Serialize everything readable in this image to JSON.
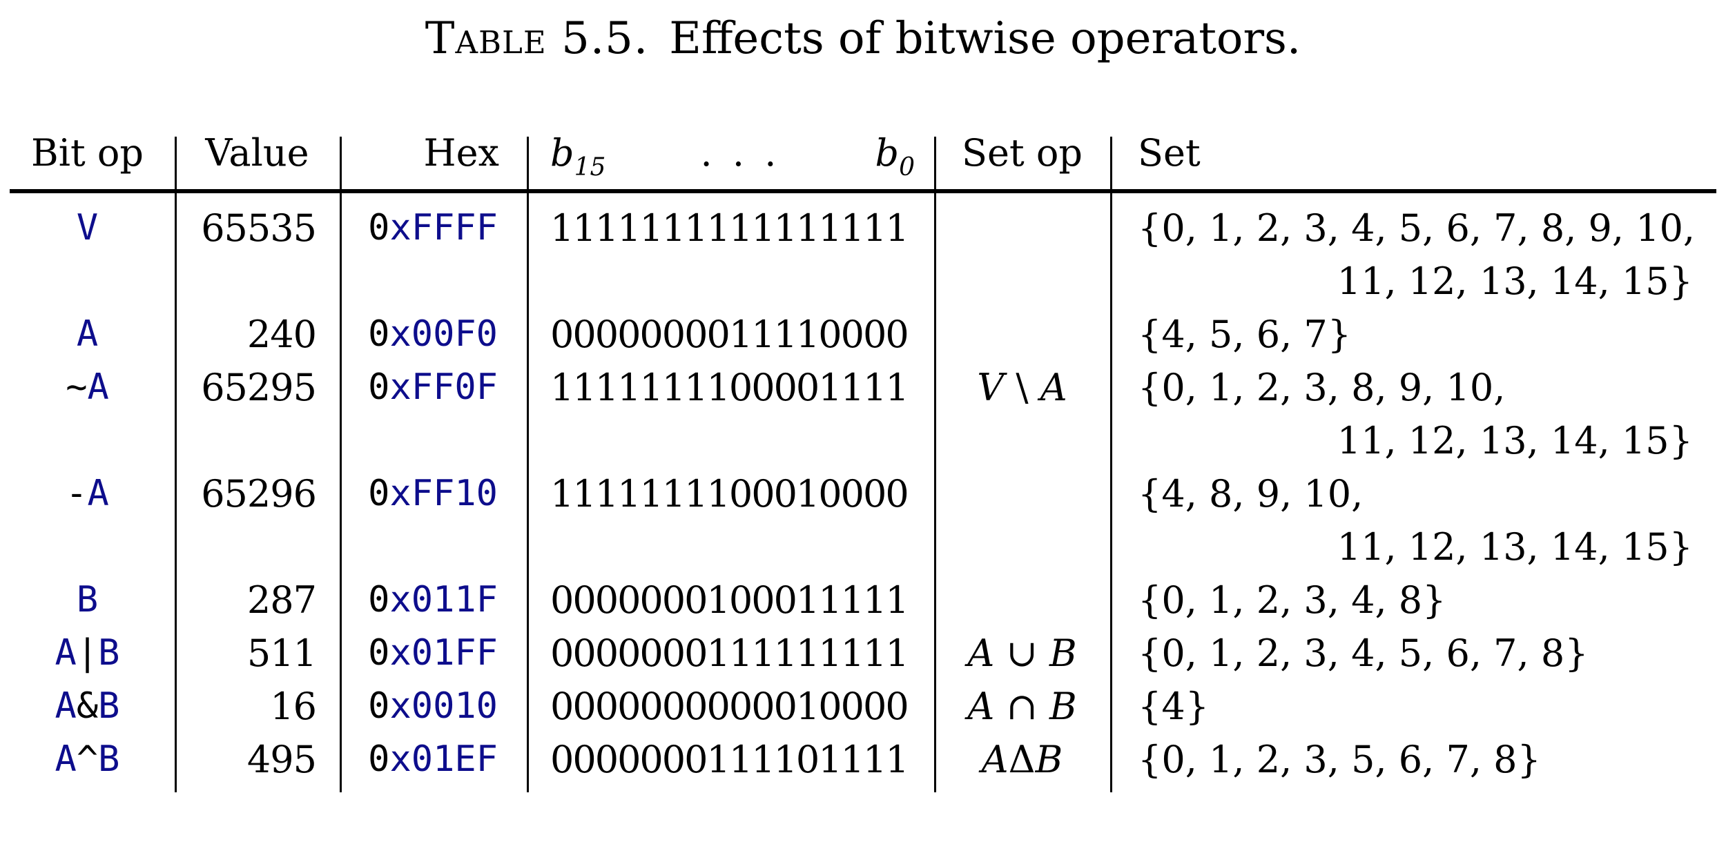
{
  "title": {
    "label": "Table 5.5.",
    "text": "Effects of bitwise operators."
  },
  "colors": {
    "code_blue": "#0D0D8C",
    "text_black": "#000000"
  },
  "table": {
    "headers": {
      "bit_op": "Bit op",
      "value": "Value",
      "hex": "Hex",
      "bits_left_sym": "b",
      "bits_left_sub": "15",
      "bits_dots": ". . .",
      "bits_right_sym": "b",
      "bits_right_sub": "0",
      "set_op": "Set op",
      "set": "Set"
    },
    "rows": [
      {
        "bit_op": "V",
        "value": "65535",
        "hex": "0xFFFF",
        "bits": "1111111111111111",
        "set_op": "",
        "set_line1": "{0, 1, 2, 3, 4, 5, 6, 7, 8, 9, 10,",
        "set_line2": "11, 12, 13, 14, 15}"
      },
      {
        "bit_op": "A",
        "value": "240",
        "hex": "0x00F0",
        "bits": "0000000011110000",
        "set_op": "",
        "set_line1": "{4, 5, 6, 7}",
        "set_line2": ""
      },
      {
        "bit_op": "~A",
        "value": "65295",
        "hex": "0xFF0F",
        "bits": "1111111100001111",
        "set_op": "V \\ A",
        "set_line1": "{0, 1, 2, 3, 8, 9, 10,",
        "set_line2": "11, 12, 13, 14, 15}"
      },
      {
        "bit_op": "-A",
        "value": "65296",
        "hex": "0xFF10",
        "bits": "1111111100010000",
        "set_op": "",
        "set_line1": "{4, 8, 9, 10,",
        "set_line2": "11, 12, 13, 14, 15}"
      },
      {
        "bit_op": "B",
        "value": "287",
        "hex": "0x011F",
        "bits": "0000000100011111",
        "set_op": "",
        "set_line1": "{0, 1, 2, 3, 4, 8}",
        "set_line2": ""
      },
      {
        "bit_op": "A|B",
        "value": "511",
        "hex": "0x01FF",
        "bits": "0000000111111111",
        "set_op": "A ∪ B",
        "set_line1": "{0, 1, 2, 3, 4, 5, 6, 7, 8}",
        "set_line2": ""
      },
      {
        "bit_op": "A&B",
        "value": "16",
        "hex": "0x0010",
        "bits": "0000000000010000",
        "set_op": "A ∩ B",
        "set_line1": "{4}",
        "set_line2": ""
      },
      {
        "bit_op": "A^B",
        "value": "495",
        "hex": "0x01EF",
        "bits": "0000000111101111",
        "set_op": "AΔB",
        "set_line1": "{0, 1, 2, 3, 5, 6, 7, 8}",
        "set_line2": ""
      }
    ]
  }
}
